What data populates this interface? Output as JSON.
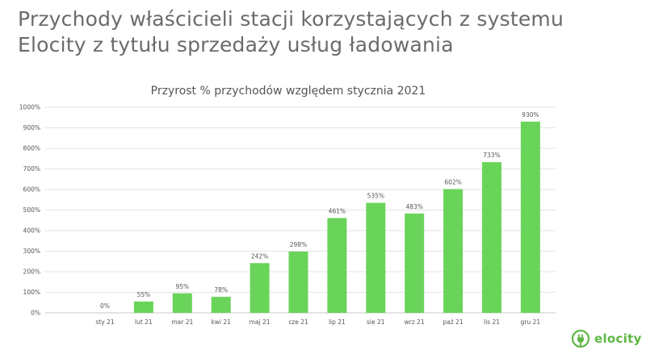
{
  "slide": {
    "title_line1": "Przychody właścicieli stacji korzystających z systemu",
    "title_line2": "Elocity z tytułu sprzedaży usług ładowania"
  },
  "brand": {
    "logo_text": "elocity",
    "color": "#6ad45a"
  },
  "chart_data": {
    "type": "bar",
    "title": "Przyrost % przychodów względem stycznia 2021",
    "xlabel": "",
    "ylabel": "",
    "categories": [
      "sty 21",
      "lut 21",
      "mar 21",
      "kwi 21",
      "maj 21",
      "cze 21",
      "lip 21",
      "sie 21",
      "wrz 21",
      "paź 21",
      "lis 21",
      "gru 21"
    ],
    "values": [
      0,
      55,
      95,
      78,
      242,
      298,
      461,
      535,
      483,
      602,
      733,
      930
    ],
    "data_labels": [
      "0%",
      "55%",
      "95%",
      "78%",
      "242%",
      "298%",
      "461%",
      "535%",
      "483%",
      "602%",
      "733%",
      "930%"
    ],
    "yticks": [
      "0%",
      "100%",
      "200%",
      "300%",
      "400%",
      "500%",
      "600%",
      "700%",
      "800%",
      "900%",
      "1000%"
    ],
    "ylim": [
      0,
      1000
    ],
    "grid": true,
    "bar_color": "#6ad45a"
  }
}
